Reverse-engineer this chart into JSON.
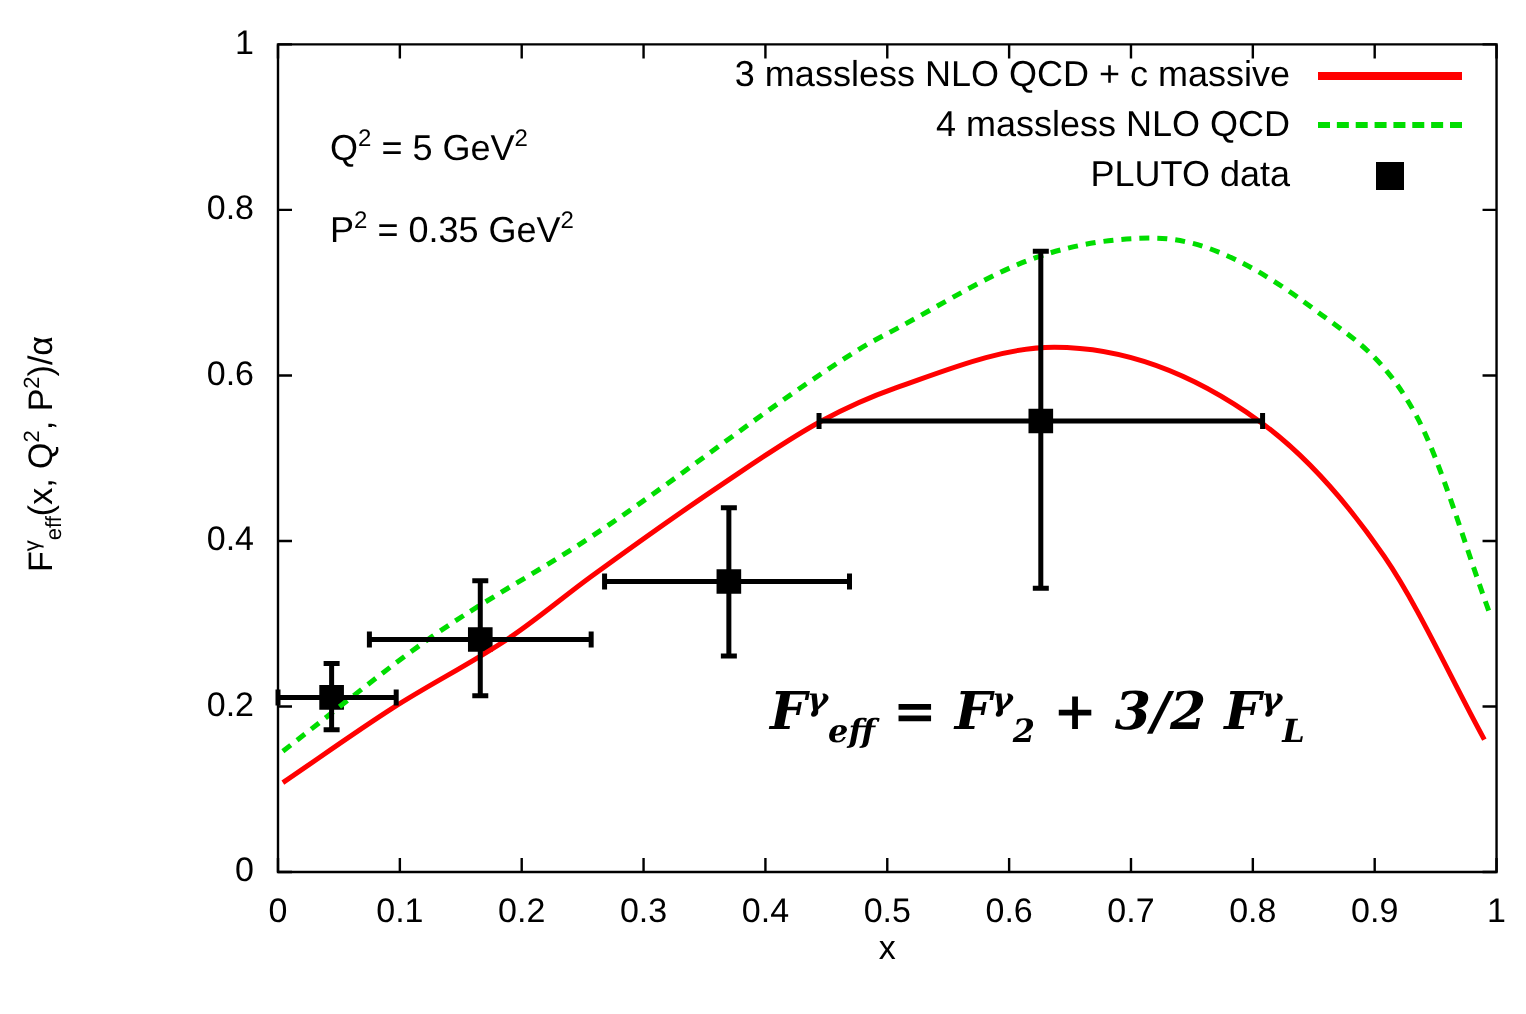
{
  "chart_data": {
    "type": "line",
    "xlabel": "x",
    "ylabel": "F$^{γ}$$_{eff}$(x, Q$^{2}$, P$^{2}$)/α",
    "xlim": [
      0,
      1
    ],
    "xticks": [
      0,
      0.1,
      0.2,
      0.3,
      0.4,
      0.5,
      0.6,
      0.7,
      0.8,
      0.9,
      1
    ],
    "ylim": [
      0,
      1
    ],
    "yticks": [
      0,
      0.2,
      0.4,
      0.6,
      0.8,
      1
    ],
    "grid": false,
    "legend": "top right",
    "annotations": [
      "Q$^{2}$ = 5 GeV$^{2}$",
      "P$^{2}$ = 0.35 GeV$^{2}$",
      "F$^{γ}$$_{eff}$ = F$^{γ}$$_{2}$ + 3/2 F$^{γ}$$_{L}$"
    ],
    "series": [
      {
        "name": "3 massless NLO QCD + c massive",
        "color": "#ff0000",
        "line_style": "solid",
        "marker": "none",
        "x": [
          0.004,
          0.094,
          0.192,
          0.257,
          0.365,
          0.446,
          0.507,
          0.637,
          0.805,
          0.908,
          0.99
        ],
        "values": [
          0.108,
          0.198,
          0.285,
          0.357,
          0.469,
          0.545,
          0.585,
          0.634,
          0.545,
          0.381,
          0.16
        ]
      },
      {
        "name": "4 massless NLO QCD",
        "color": "#00dd00",
        "line_style": "dashed",
        "marker": "none",
        "x": [
          0.004,
          0.127,
          0.257,
          0.474,
          0.507,
          0.625,
          0.718,
          0.853,
          0.935,
          0.995
        ],
        "values": [
          0.146,
          0.285,
          0.405,
          0.629,
          0.656,
          0.744,
          0.766,
          0.677,
          0.549,
          0.31
        ]
      },
      {
        "name": "PLUTO data",
        "color": "#000000",
        "type": "scatter",
        "marker": "square",
        "x": [
          0.044,
          0.166,
          0.37,
          0.626
        ],
        "values": [
          0.211,
          0.281,
          0.351,
          0.545
        ],
        "errors": [
          [
            0.172,
            0.252
          ],
          [
            0.213,
            0.352
          ],
          [
            0.261,
            0.44
          ],
          [
            0.343,
            0.75
          ]
        ],
        "xerrors": [
          [
            0,
            0.097
          ],
          [
            0.075,
            0.257
          ],
          [
            0.268,
            0.469
          ],
          [
            0.444,
            0.808
          ]
        ]
      }
    ]
  }
}
